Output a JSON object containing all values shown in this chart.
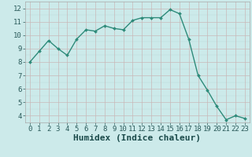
{
  "x": [
    0,
    1,
    2,
    3,
    4,
    5,
    6,
    7,
    8,
    9,
    10,
    11,
    12,
    13,
    14,
    15,
    16,
    17,
    18,
    19,
    20,
    21,
    22,
    23
  ],
  "y": [
    8.0,
    8.8,
    9.6,
    9.0,
    8.5,
    9.7,
    10.4,
    10.3,
    10.7,
    10.5,
    10.4,
    11.1,
    11.3,
    11.3,
    11.3,
    11.9,
    11.6,
    9.7,
    7.0,
    5.9,
    4.7,
    3.7,
    4.0,
    3.8
  ],
  "line_color": "#2e8b7a",
  "marker": "D",
  "marker_size": 2.0,
  "bg_color": "#cceaea",
  "grid_color_major_h": "#c8b8b8",
  "grid_color_major_v": "#c8b8b8",
  "grid_color_minor": "#bcd8d8",
  "xlabel": "Humidex (Indice chaleur)",
  "xlabel_fontsize": 8,
  "ylabel_ticks": [
    4,
    5,
    6,
    7,
    8,
    9,
    10,
    11,
    12
  ],
  "xlim": [
    -0.5,
    23.5
  ],
  "ylim": [
    3.5,
    12.5
  ],
  "xtick_labels": [
    "0",
    "1",
    "2",
    "3",
    "4",
    "5",
    "6",
    "7",
    "8",
    "9",
    "10",
    "11",
    "12",
    "13",
    "14",
    "15",
    "16",
    "17",
    "18",
    "19",
    "20",
    "21",
    "22",
    "23"
  ],
  "tick_fontsize": 6.5,
  "line_width": 1.0,
  "spine_color": "#aaaaaa"
}
